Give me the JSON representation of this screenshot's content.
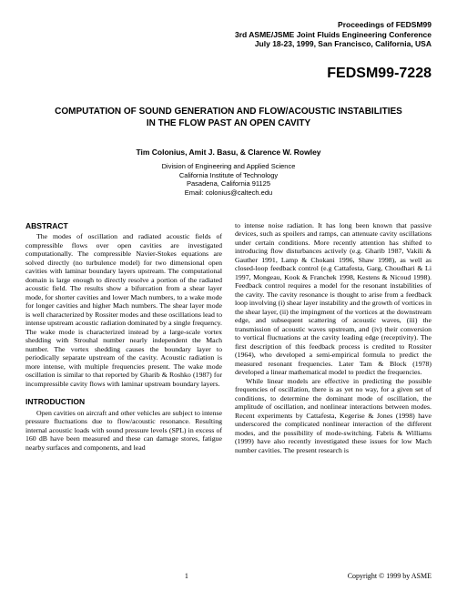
{
  "header": {
    "line1": "Proceedings of FEDSM99",
    "line2": "3rd ASME/JSME Joint Fluids Engineering Conference",
    "line3": "July 18-23, 1999, San Francisco, California, USA"
  },
  "paper_id": "FEDSM99-7228",
  "title_line1": "COMPUTATION OF SOUND GENERATION AND FLOW/ACOUSTIC INSTABILITIES",
  "title_line2": "IN THE FLOW PAST AN OPEN CAVITY",
  "authors": "Tim Colonius, Amit J. Basu, & Clarence W. Rowley",
  "affiliation": {
    "line1": "Division of Engineering and Applied Science",
    "line2": "California Institute of Technology",
    "line3": "Pasadena, California 91125",
    "line4": "Email: colonius@caltech.edu"
  },
  "abstract_head": "ABSTRACT",
  "abstract_body": "The modes of oscillation and radiated acoustic fields of compressible flows over open cavities are investigated computationally. The compressible Navier-Stokes equations are solved directly (no turbulence model) for two dimensional open cavities with laminar boundary layers upstream. The computational domain is large enough to directly resolve a portion of the radiated acoustic field. The results show a bifurcation from a shear layer mode, for shorter cavities and lower Mach numbers, to a wake mode for longer cavities and higher Mach numbers. The shear layer mode is well characterized by Rossiter modes and these oscillations lead to intense upstream acoustic radiation dominated by a single frequency. The wake mode is characterized instead by a large-scale vortex shedding with Strouhal number nearly independent the Mach number. The vortex shedding causes the boundary layer to periodically separate upstream of the cavity. Acoustic radiation is more intense, with multiple frequencies present. The wake mode oscillation is similar to that reported by Gharib & Roshko (1987) for incompressible cavity flows with laminar upstream boundary layers.",
  "intro_head": "INTRODUCTION",
  "intro_p1": "Open cavities on aircraft and other vehicles are subject to intense pressure fluctuations due to flow/acoustic resonance. Resulting internal acoustic loads with sound pressure levels (SPL) in excess of 160 dB have been measured and these can damage stores, fatigue nearby surfaces and components, and lead",
  "intro_p2": "to intense noise radiation. It has long been known that passive devices, such as spoilers and ramps, can attenuate cavity oscillations under certain conditions. More recently attention has shifted to introducing flow disturbances actively (e.g. Gharib 1987, Vakili & Gauther 1991, Lamp & Chokani 1996, Shaw 1998), as well as closed-loop feedback control (e.g Cattafesta, Garg, Choudhari & Li 1997, Mongeau, Kook & Franchek 1998, Kestens & Nicoud 1998). Feedback control requires a model for the resonant instabilities of the cavity. The cavity resonance is thought to arise from a feedback loop involving (i) shear layer instability and the growth of vortices in the shear layer, (ii) the impingment of the vortices at the downstream edge, and subsequent scattering of acoustic waves, (iii) the transmission of acoustic waves upstream, and (iv) their conversion to vortical fluctuations at the cavity leading edge (receptivity). The first description of this feedback process is credited to Rossiter (1964), who developed a semi-empirical formula to predict the measured resonant frequencies. Later Tam & Block (1978) developed a linear mathematical model to predict the frequencies.",
  "intro_p3": "While linear models are effective in predicting the possible frequencies of oscillation, there is as yet no way, for a given set of conditions, to determine the dominant mode of oscillation, the amplitude of oscillation, and nonlinear interactions between modes. Recent experiments by Cattafesta, Kegerise & Jones (1998) have underscored the complicated nonlinear interaction of the different modes, and the possibility of mode-switching. Fabris & Williams (1999) have also recently investigated these issues for low Mach number cavities. The present research is",
  "footer": {
    "page": "1",
    "copyright": "Copyright © 1999 by ASME"
  }
}
